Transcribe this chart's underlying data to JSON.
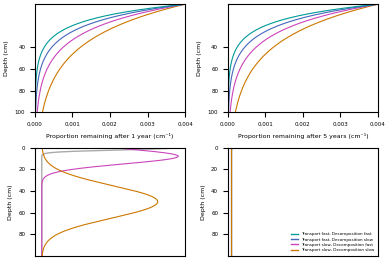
{
  "figsize": [
    3.9,
    2.6
  ],
  "dpi": 100,
  "colors": {
    "tf_df": "#009999",
    "tf_ds": "#4466bb",
    "ts_df": "#cc44bb",
    "ts_ds": "#cc7700"
  },
  "legend_labels": [
    "Transport fast, Decomposition fast",
    "Transport fast, Decomposition slow",
    "Transport slow, Decomposition fast",
    "Transport slow, Decomposition slow"
  ],
  "xlabel_1yr": "Proportion remaining after 1 year (cm⁻¹)",
  "xlabel_5yr": "Proportion remaining after 5 years (cm⁻¹)",
  "ylabel": "Depth (cm)",
  "xlim": [
    0,
    0.004
  ],
  "ylim": [
    100,
    0
  ],
  "xticks": [
    0.0,
    0.001,
    0.002,
    0.003,
    0.004
  ]
}
